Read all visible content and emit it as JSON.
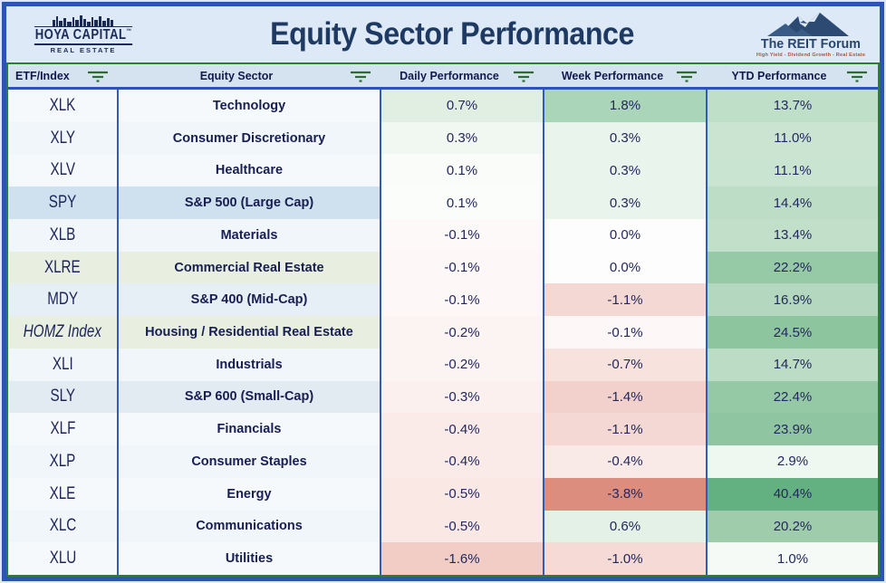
{
  "header": {
    "title": "Equity Sector Performance",
    "hoya_logo": {
      "name": "HOYA CAPITAL",
      "tm": "™",
      "subtitle": "REAL ESTATE"
    },
    "reit_logo": {
      "name": "The REIT Forum",
      "tagline": "High Yield - Dividend Growth - Real Estate"
    }
  },
  "colors": {
    "frame_border": "#2b55b4",
    "table_border_green": "#2e7d33",
    "column_divider": "#2f5cb8",
    "header_bg": "#d5e3f0",
    "title_text": "#1e3a63",
    "body_text": "#23275e",
    "filter_icon_green": "#2e6b30",
    "positive_strong": "#63b081",
    "negative_strong": "#dc8d7e"
  },
  "table": {
    "columns": [
      {
        "label": "ETF/Index"
      },
      {
        "label": "Equity Sector"
      },
      {
        "label": "Daily Performance"
      },
      {
        "label": "Week Performance"
      },
      {
        "label": "YTD Performance"
      }
    ],
    "rows": [
      {
        "etf": "XLK",
        "italic": false,
        "sector": "Technology",
        "daily": "0.7%",
        "week": "1.8%",
        "ytd": "13.7%",
        "row_bg": "#f6f9fc",
        "daily_bg": "#e1efe2",
        "week_bg": "#abd5b8",
        "ytd_bg": "#c0dfc9"
      },
      {
        "etf": "XLY",
        "italic": false,
        "sector": "Consumer Discretionary",
        "daily": "0.3%",
        "week": "0.3%",
        "ytd": "11.0%",
        "row_bg": "#f1f6fb",
        "daily_bg": "#f1f8f2",
        "week_bg": "#e9f4ec",
        "ytd_bg": "#cbe4d2"
      },
      {
        "etf": "XLV",
        "italic": false,
        "sector": "Healthcare",
        "daily": "0.1%",
        "week": "0.3%",
        "ytd": "11.1%",
        "row_bg": "#f6f9fc",
        "daily_bg": "#fafcfa",
        "week_bg": "#e9f4ec",
        "ytd_bg": "#cae4d2"
      },
      {
        "etf": "SPY",
        "italic": false,
        "sector": "S&P 500 (Large Cap)",
        "daily": "0.1%",
        "week": "0.3%",
        "ytd": "14.4%",
        "row_bg": "#cfe0ef",
        "daily_bg": "#fbfdfb",
        "week_bg": "#e9f4ec",
        "ytd_bg": "#bdddc6"
      },
      {
        "etf": "XLB",
        "italic": false,
        "sector": "Materials",
        "daily": "-0.1%",
        "week": "0.0%",
        "ytd": "13.4%",
        "row_bg": "#f1f6fb",
        "daily_bg": "#fdf9f8",
        "week_bg": "#fcfdfc",
        "ytd_bg": "#c1dfc9"
      },
      {
        "etf": "XLRE",
        "italic": false,
        "sector": "Commercial Real Estate",
        "daily": "-0.1%",
        "week": "0.0%",
        "ytd": "22.2%",
        "row_bg": "#e8efe0",
        "daily_bg": "#fdf8f7",
        "week_bg": "#fcfdfc",
        "ytd_bg": "#96c9a6"
      },
      {
        "etf": "MDY",
        "italic": false,
        "sector": "S&P 400 (Mid-Cap)",
        "daily": "-0.1%",
        "week": "-1.1%",
        "ytd": "16.9%",
        "row_bg": "#e6eff6",
        "daily_bg": "#fdf8f7",
        "week_bg": "#f4d8d4",
        "ytd_bg": "#b3d8bf"
      },
      {
        "etf": "HOMZ Index",
        "italic": true,
        "sector": "Housing / Residential Real Estate",
        "daily": "-0.2%",
        "week": "-0.1%",
        "ytd": "24.5%",
        "row_bg": "#e8efe0",
        "daily_bg": "#fcf4f2",
        "week_bg": "#fdf8f7",
        "ytd_bg": "#8dc59f"
      },
      {
        "etf": "XLI",
        "italic": false,
        "sector": "Industrials",
        "daily": "-0.2%",
        "week": "-0.7%",
        "ytd": "14.7%",
        "row_bg": "#f1f6fb",
        "daily_bg": "#fcf4f2",
        "week_bg": "#f7e2de",
        "ytd_bg": "#bcdcc5"
      },
      {
        "etf": "SLY",
        "italic": false,
        "sector": "S&P 600 (Small-Cap)",
        "daily": "-0.3%",
        "week": "-1.4%",
        "ytd": "22.4%",
        "row_bg": "#e3ebf2",
        "daily_bg": "#fbf0ee",
        "week_bg": "#f2d1cc",
        "ytd_bg": "#95c8a5"
      },
      {
        "etf": "XLF",
        "italic": false,
        "sector": "Financials",
        "daily": "-0.4%",
        "week": "-1.1%",
        "ytd": "23.9%",
        "row_bg": "#f6f9fc",
        "daily_bg": "#faebe8",
        "week_bg": "#f4d8d4",
        "ytd_bg": "#8fc6a1"
      },
      {
        "etf": "XLP",
        "italic": false,
        "sector": "Consumer Staples",
        "daily": "-0.4%",
        "week": "-0.4%",
        "ytd": "2.9%",
        "row_bg": "#f1f6fb",
        "daily_bg": "#faebe8",
        "week_bg": "#faeae7",
        "ytd_bg": "#eff7f1"
      },
      {
        "etf": "XLE",
        "italic": false,
        "sector": "Energy",
        "daily": "-0.5%",
        "week": "-3.8%",
        "ytd": "40.4%",
        "row_bg": "#f6f9fc",
        "daily_bg": "#f9e8e4",
        "week_bg": "#dc8d7e",
        "ytd_bg": "#63b081"
      },
      {
        "etf": "XLC",
        "italic": false,
        "sector": "Communications",
        "daily": "-0.5%",
        "week": "0.6%",
        "ytd": "20.2%",
        "row_bg": "#f1f6fb",
        "daily_bg": "#f9e8e4",
        "week_bg": "#e4f1e7",
        "ytd_bg": "#9fcdac"
      },
      {
        "etf": "XLU",
        "italic": false,
        "sector": "Utilities",
        "daily": "-1.6%",
        "week": "-1.0%",
        "ytd": "1.0%",
        "row_bg": "#f6f9fc",
        "daily_bg": "#f1cdc5",
        "week_bg": "#f5dad6",
        "ytd_bg": "#f6faf7"
      }
    ]
  }
}
